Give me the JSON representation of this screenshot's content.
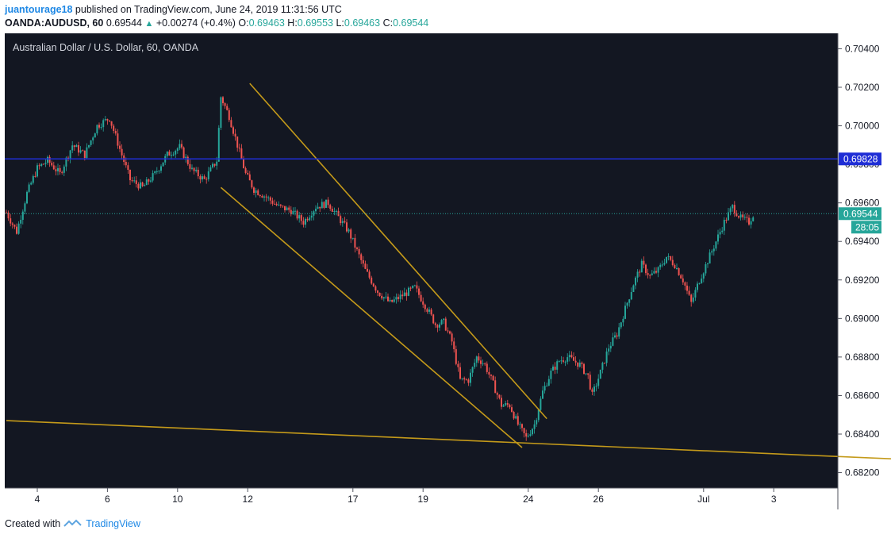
{
  "header": {
    "author": "juantourage18",
    "published_text": "published on TradingView.com, June 24, 2019 11:31:56 UTC",
    "symbol": "OANDA:AUDUSD, 60",
    "last_price": "0.69544",
    "change": "+0.00274 (+0.4%)",
    "o_label": "O:",
    "o_value": "0.69463",
    "h_label": "H:",
    "h_value": "0.69553",
    "l_label": "L:",
    "l_value": "0.69463",
    "c_label": "C:",
    "c_value": "0.69544"
  },
  "footer": {
    "created_with": "Created with",
    "brand": "TradingView"
  },
  "colors": {
    "background": "#131722",
    "up": "#26a69a",
    "down": "#ef5350",
    "trendline": "#c49a1a",
    "resistance": "#1f2ed6",
    "axis_text": "#131722"
  },
  "chart_data": {
    "type": "candlestick",
    "title": "Australian Dollar / U.S. Dollar, 60, OANDA",
    "ylim": [
      0.6812,
      0.7048
    ],
    "y_ticks": [
      "0.70400",
      "0.70200",
      "0.70000",
      "0.69800",
      "0.69600",
      "0.69400",
      "0.69200",
      "0.69000",
      "0.68800",
      "0.68600",
      "0.68400",
      "0.68200"
    ],
    "x_ticks": [
      "4",
      "6",
      "10",
      "12",
      "17",
      "19",
      "24",
      "26",
      "Jul",
      "3"
    ],
    "resistance_level": 0.69828,
    "resistance_label": "0.69828",
    "last_price_label": "0.69544",
    "countdown_label": "28:05",
    "approx_price_path": [
      [
        0,
        0.6955
      ],
      [
        5,
        0.6945
      ],
      [
        10,
        0.6965
      ],
      [
        15,
        0.6978
      ],
      [
        20,
        0.6982
      ],
      [
        26,
        0.6975
      ],
      [
        32,
        0.699
      ],
      [
        38,
        0.6985
      ],
      [
        44,
        0.7
      ],
      [
        50,
        0.7004
      ],
      [
        55,
        0.6988
      ],
      [
        60,
        0.6972
      ],
      [
        66,
        0.6968
      ],
      [
        72,
        0.6975
      ],
      [
        78,
        0.6985
      ],
      [
        84,
        0.6989
      ],
      [
        90,
        0.6977
      ],
      [
        96,
        0.6972
      ],
      [
        102,
        0.6982
      ],
      [
        104,
        0.7015
      ],
      [
        108,
        0.7005
      ],
      [
        112,
        0.699
      ],
      [
        116,
        0.6975
      ],
      [
        120,
        0.6967
      ],
      [
        126,
        0.6963
      ],
      [
        132,
        0.6958
      ],
      [
        138,
        0.6956
      ],
      [
        144,
        0.695
      ],
      [
        150,
        0.6958
      ],
      [
        156,
        0.696
      ],
      [
        160,
        0.6954
      ],
      [
        166,
        0.6945
      ],
      [
        170,
        0.6935
      ],
      [
        174,
        0.6925
      ],
      [
        180,
        0.6914
      ],
      [
        186,
        0.6908
      ],
      [
        192,
        0.6912
      ],
      [
        198,
        0.6916
      ],
      [
        204,
        0.6905
      ],
      [
        208,
        0.6897
      ],
      [
        212,
        0.6898
      ],
      [
        216,
        0.6888
      ],
      [
        220,
        0.6868
      ],
      [
        224,
        0.6868
      ],
      [
        228,
        0.688
      ],
      [
        232,
        0.6876
      ],
      [
        236,
        0.6866
      ],
      [
        240,
        0.6855
      ],
      [
        244,
        0.6855
      ],
      [
        248,
        0.6845
      ],
      [
        252,
        0.6838
      ],
      [
        256,
        0.6845
      ],
      [
        260,
        0.6862
      ],
      [
        264,
        0.6872
      ],
      [
        268,
        0.6878
      ],
      [
        272,
        0.688
      ],
      [
        278,
        0.6876
      ],
      [
        282,
        0.687
      ],
      [
        284,
        0.686
      ],
      [
        288,
        0.6872
      ],
      [
        292,
        0.6885
      ],
      [
        296,
        0.6892
      ],
      [
        300,
        0.6905
      ],
      [
        304,
        0.6918
      ],
      [
        308,
        0.6928
      ],
      [
        312,
        0.6922
      ],
      [
        316,
        0.6925
      ],
      [
        320,
        0.6932
      ],
      [
        324,
        0.6928
      ],
      [
        328,
        0.692
      ],
      [
        332,
        0.6908
      ],
      [
        336,
        0.692
      ],
      [
        340,
        0.693
      ],
      [
        344,
        0.694
      ],
      [
        348,
        0.695
      ],
      [
        352,
        0.6958
      ],
      [
        356,
        0.6952
      ],
      [
        360,
        0.695
      ],
      [
        362,
        0.6954
      ]
    ],
    "trendlines": [
      {
        "name": "upper",
        "from": [
          118,
          0.7022
        ],
        "to": [
          262,
          0.6848
        ]
      },
      {
        "name": "lower",
        "from": [
          104,
          0.6968
        ],
        "to": [
          250,
          0.6833
        ]
      },
      {
        "name": "support",
        "from": [
          0,
          0.6847
        ],
        "to": [
          540,
          0.6822
        ]
      }
    ]
  }
}
